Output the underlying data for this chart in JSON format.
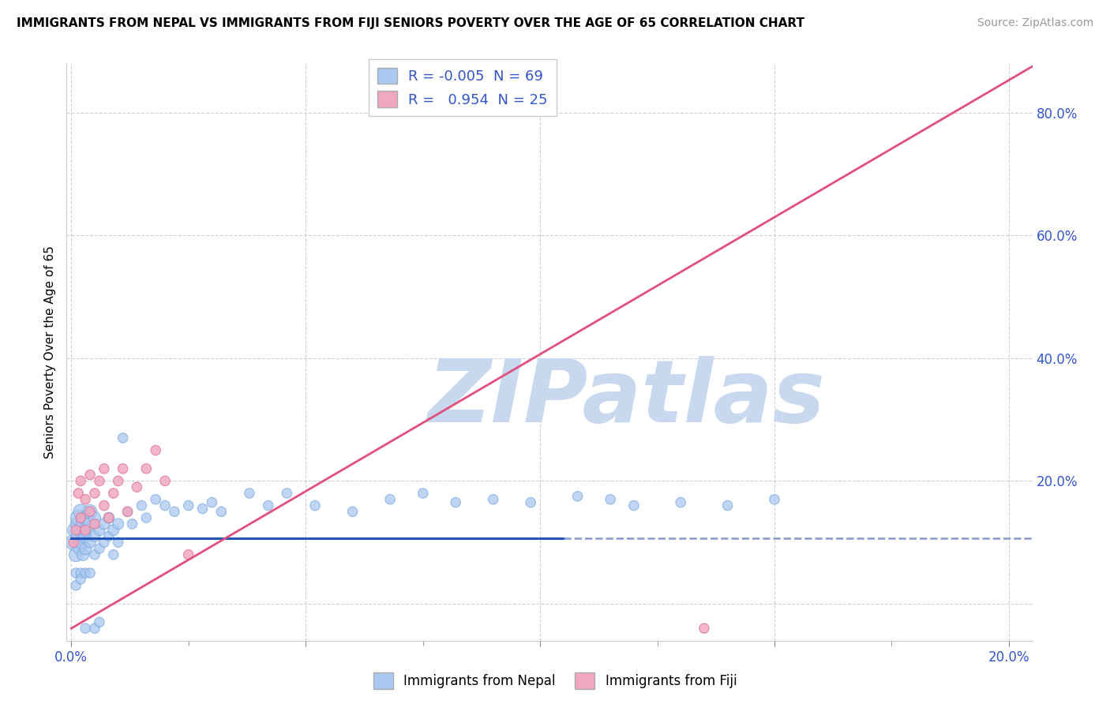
{
  "title": "IMMIGRANTS FROM NEPAL VS IMMIGRANTS FROM FIJI SENIORS POVERTY OVER THE AGE OF 65 CORRELATION CHART",
  "source": "Source: ZipAtlas.com",
  "ylabel": "Seniors Poverty Over the Age of 65",
  "xlim": [
    -0.001,
    0.205
  ],
  "ylim": [
    -0.06,
    0.88
  ],
  "ytick_positions": [
    0.0,
    0.2,
    0.4,
    0.6,
    0.8
  ],
  "ytick_labels": [
    "",
    "20.0%",
    "40.0%",
    "60.0%",
    "80.0%"
  ],
  "xtick_positions": [
    0.0,
    0.05,
    0.1,
    0.15,
    0.2
  ],
  "xtick_labels": [
    "0.0%",
    "",
    "",
    "",
    "20.0%"
  ],
  "nepal_R": "-0.005",
  "nepal_N": "69",
  "fiji_R": "0.954",
  "fiji_N": "25",
  "nepal_color": "#aac8f0",
  "nepal_edge_color": "#7aaae0",
  "fiji_color": "#f0a8c0",
  "fiji_edge_color": "#e07898",
  "nepal_line_color": "#2255bb",
  "nepal_line_dash_color": "#8899cc",
  "fiji_line_color": "#e0507a",
  "watermark": "ZIPatlas",
  "watermark_color": "#c8d8ee",
  "nepal_x": [
    0.0005,
    0.0008,
    0.001,
    0.0012,
    0.0015,
    0.0015,
    0.0018,
    0.002,
    0.002,
    0.0022,
    0.0025,
    0.0025,
    0.003,
    0.003,
    0.003,
    0.003,
    0.004,
    0.004,
    0.004,
    0.005,
    0.005,
    0.005,
    0.006,
    0.006,
    0.007,
    0.007,
    0.008,
    0.008,
    0.009,
    0.009,
    0.01,
    0.01,
    0.011,
    0.012,
    0.013,
    0.015,
    0.016,
    0.018,
    0.02,
    0.022,
    0.025,
    0.028,
    0.03,
    0.032,
    0.038,
    0.042,
    0.046,
    0.052,
    0.06,
    0.068,
    0.075,
    0.082,
    0.09,
    0.098,
    0.108,
    0.115,
    0.12,
    0.13,
    0.14,
    0.15,
    0.001,
    0.001,
    0.002,
    0.002,
    0.003,
    0.003,
    0.004,
    0.005,
    0.006
  ],
  "nepal_y": [
    0.1,
    0.12,
    0.08,
    0.13,
    0.11,
    0.14,
    0.09,
    0.12,
    0.15,
    0.1,
    0.13,
    0.08,
    0.11,
    0.14,
    0.09,
    0.12,
    0.1,
    0.13,
    0.15,
    0.11,
    0.08,
    0.14,
    0.12,
    0.09,
    0.13,
    0.1,
    0.11,
    0.14,
    0.08,
    0.12,
    0.1,
    0.13,
    0.27,
    0.15,
    0.13,
    0.16,
    0.14,
    0.17,
    0.16,
    0.15,
    0.16,
    0.155,
    0.165,
    0.15,
    0.18,
    0.16,
    0.18,
    0.16,
    0.15,
    0.17,
    0.18,
    0.165,
    0.17,
    0.165,
    0.175,
    0.17,
    0.16,
    0.165,
    0.16,
    0.17,
    0.05,
    0.03,
    0.05,
    0.04,
    0.05,
    -0.04,
    0.05,
    -0.04,
    -0.03
  ],
  "nepal_size": [
    200,
    180,
    160,
    140,
    160,
    200,
    140,
    160,
    180,
    140,
    160,
    120,
    140,
    160,
    120,
    140,
    100,
    140,
    160,
    100,
    80,
    120,
    100,
    80,
    100,
    80,
    80,
    100,
    80,
    100,
    80,
    100,
    80,
    80,
    80,
    80,
    80,
    80,
    80,
    80,
    80,
    80,
    80,
    80,
    80,
    80,
    80,
    80,
    80,
    80,
    80,
    80,
    80,
    80,
    80,
    80,
    80,
    80,
    80,
    80,
    80,
    80,
    80,
    80,
    80,
    80,
    80,
    80,
    80
  ],
  "fiji_x": [
    0.0005,
    0.001,
    0.0015,
    0.002,
    0.002,
    0.003,
    0.003,
    0.004,
    0.004,
    0.005,
    0.005,
    0.006,
    0.007,
    0.007,
    0.008,
    0.009,
    0.01,
    0.011,
    0.012,
    0.014,
    0.016,
    0.018,
    0.02,
    0.025,
    0.135
  ],
  "fiji_y": [
    0.1,
    0.12,
    0.18,
    0.14,
    0.2,
    0.12,
    0.17,
    0.15,
    0.21,
    0.18,
    0.13,
    0.2,
    0.16,
    0.22,
    0.14,
    0.18,
    0.2,
    0.22,
    0.15,
    0.19,
    0.22,
    0.25,
    0.2,
    0.08,
    -0.04
  ],
  "fiji_size": [
    80,
    80,
    80,
    80,
    80,
    80,
    80,
    80,
    80,
    80,
    80,
    80,
    80,
    80,
    80,
    80,
    80,
    80,
    80,
    80,
    80,
    80,
    80,
    80,
    80
  ],
  "nepal_trend_x": [
    0.0,
    0.105,
    0.105,
    0.205
  ],
  "nepal_trend_y": [
    0.107,
    0.107,
    0.107,
    0.107
  ],
  "nepal_trend_solid_end": 0.105,
  "fiji_trend_x0": 0.0,
  "fiji_trend_x1": 0.205,
  "fiji_trend_y0": -0.04,
  "fiji_trend_y1": 0.875
}
